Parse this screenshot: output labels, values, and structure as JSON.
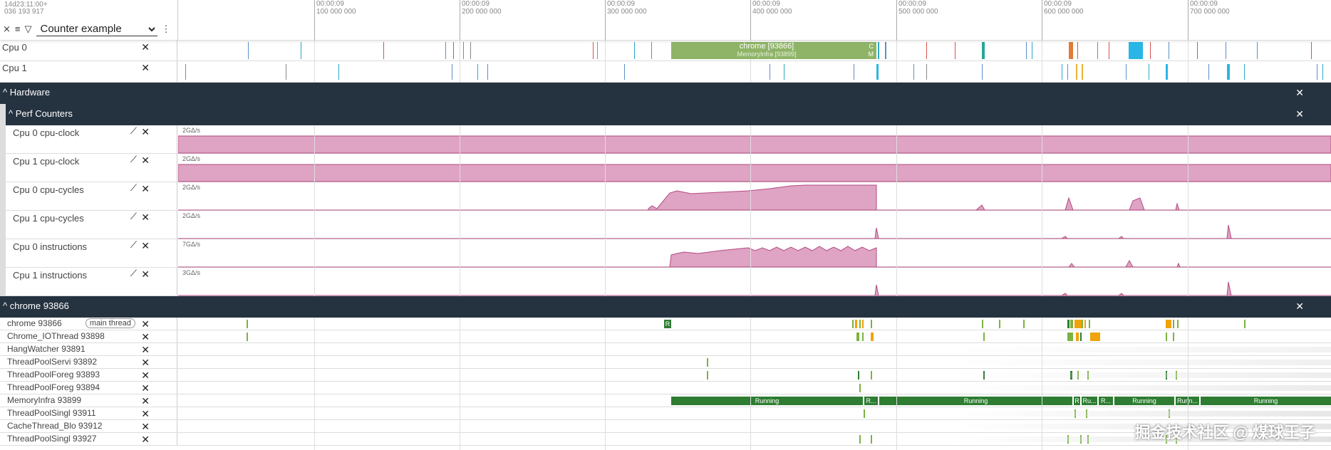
{
  "header": {
    "timestamp_line1": "14d23:11:00+",
    "timestamp_line2": "036 193 917",
    "filter_value": "Counter example",
    "ticks": [
      {
        "time": "00:00:09",
        "ns": "100 000 000"
      },
      {
        "time": "00:00:09",
        "ns": "200 000 000"
      },
      {
        "time": "00:00:09",
        "ns": "300 000 000"
      },
      {
        "time": "00:00:09",
        "ns": "400 000 000"
      },
      {
        "time": "00:00:09",
        "ns": "500 000 000"
      },
      {
        "time": "00:00:09",
        "ns": "600 000 000"
      },
      {
        "time": "00:00:09",
        "ns": "700 000 000"
      }
    ],
    "icons": [
      "collapse-all-icon",
      "list-icon",
      "filter-icon",
      "more-vert-icon"
    ]
  },
  "tracks": {
    "cpu0": {
      "label": "Cpu 0",
      "slice_title": "chrome [93866]",
      "slice_sub": "MemoryInfra [93899]",
      "slice_c": "C",
      "slice_m": "M"
    },
    "cpu1": {
      "label": "Cpu 1"
    },
    "hardware": {
      "label": "Hardware",
      "expand_icon": "^"
    },
    "perf": {
      "label": "Perf Counters",
      "expand_icon": "^"
    },
    "counters": [
      {
        "label": "Cpu 0 cpu-clock",
        "scale": "2GΔ/s"
      },
      {
        "label": "Cpu 1 cpu-clock",
        "scale": "2GΔ/s"
      },
      {
        "label": "Cpu 0 cpu-cycles",
        "scale": "2GΔ/s"
      },
      {
        "label": "Cpu 1 cpu-cycles",
        "scale": "2GΔ/s"
      },
      {
        "label": "Cpu 0 instructions",
        "scale": "7GΔ/s"
      },
      {
        "label": "Cpu 1 instructions",
        "scale": "3GΔ/s"
      }
    ],
    "process": {
      "label": "chrome 93866"
    },
    "threads": [
      {
        "label": "chrome 93866",
        "badge": "main thread"
      },
      {
        "label": "Chrome_IOThread 93898"
      },
      {
        "label": "HangWatcher 93891"
      },
      {
        "label": "ThreadPoolServi 93892"
      },
      {
        "label": "ThreadPoolForeg 93893"
      },
      {
        "label": "ThreadPoolForeg 93894"
      },
      {
        "label": "MemoryInfra 93899"
      },
      {
        "label": "ThreadPoolSingl 93911"
      },
      {
        "label": "CacheThread_Blo 93912"
      },
      {
        "label": "ThreadPoolSingl 93927"
      }
    ],
    "thread_marks": {
      "r_label": "R"
    },
    "running_labels": [
      "Running",
      "R...",
      "Running",
      "R",
      "Ru...",
      "R...",
      "Running",
      "Runn...",
      "Running"
    ]
  },
  "colors": {
    "counter_fill": "#dfa3c3",
    "counter_stroke": "#b24b80",
    "running": "#2e7d32",
    "group_bg": "#253240",
    "cpu_slice": "#8fb468"
  },
  "watermark": "掘金技术社区 @ 煤球王子"
}
